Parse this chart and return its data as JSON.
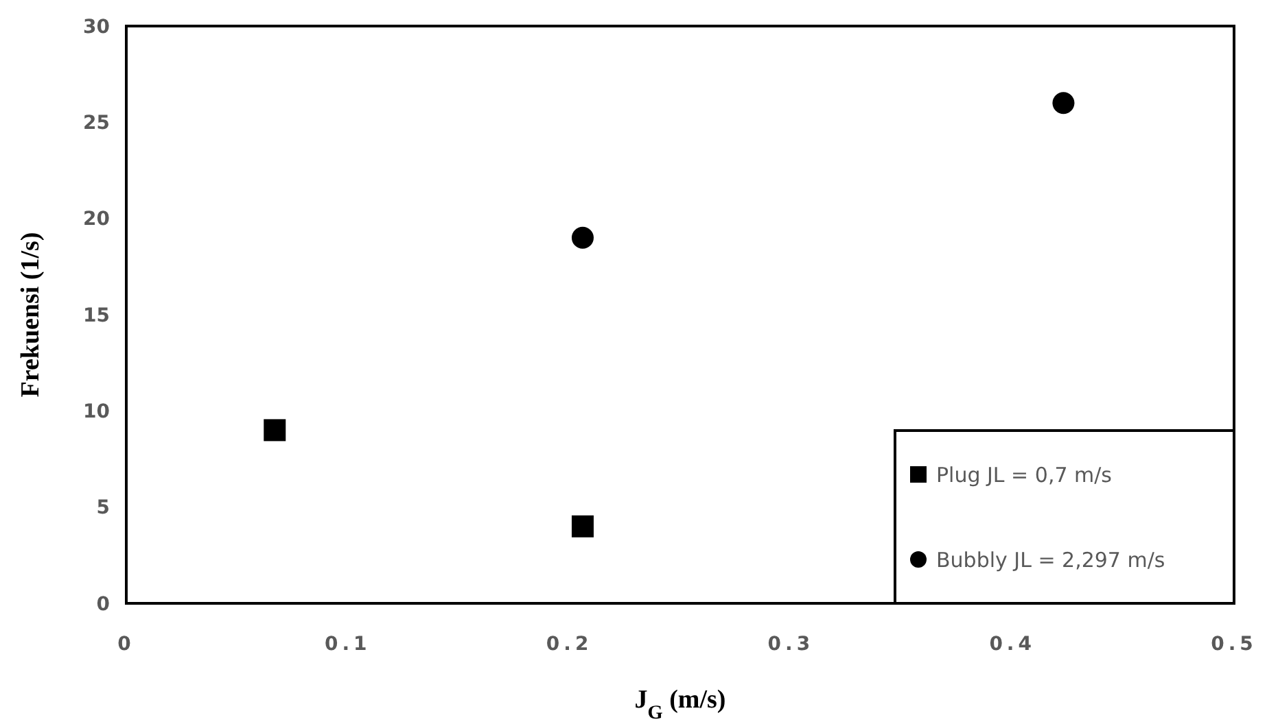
{
  "chart_data": {
    "type": "scatter",
    "xlabel": "J$_{G}$ (m/s)",
    "ylabel": "Frekuensi (1/s)",
    "xlim": [
      0,
      0.5
    ],
    "xticks": [
      0,
      0.1,
      0.2,
      0.3,
      0.4,
      0.5
    ],
    "ylim": [
      0,
      30
    ],
    "yticks": [
      0,
      5,
      10,
      15,
      20,
      25,
      30
    ],
    "grid": false,
    "legend": "bottom right",
    "series": [
      {
        "name": "Plug JL = 0,7 m/s",
        "color": "#000000",
        "marker": "square",
        "x": [
          0.067,
          0.206
        ],
        "values": [
          9,
          4
        ]
      },
      {
        "name": "Bubbly JL = 2,297 m/s",
        "color": "#000000",
        "marker": "circle",
        "x": [
          0.206,
          0.423
        ],
        "values": [
          19,
          26
        ]
      }
    ]
  }
}
